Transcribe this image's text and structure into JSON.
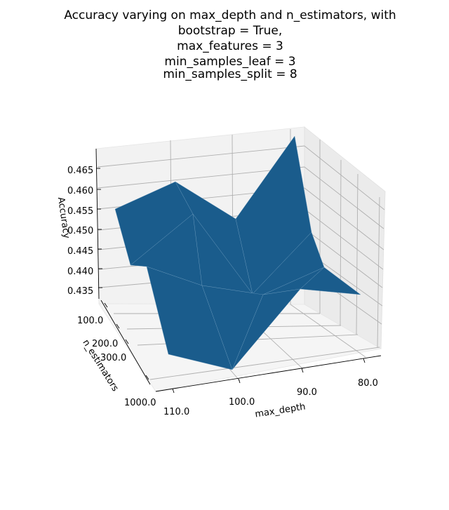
{
  "chart_data": {
    "type": "surface3d",
    "title_lines": [
      "Accuracy varying on max_depth and n_estimators, with",
      "bootstrap = True,",
      "max_features = 3",
      "min_samples_leaf = 3",
      "min_samples_split = 8"
    ],
    "xlabel": "max_depth",
    "ylabel": "n_estimators",
    "zlabel": "Accuracy",
    "x_ticks": [
      "110.0",
      "100.0",
      "90.0",
      "80.0"
    ],
    "y_ticks": [
      "100.0",
      "200.0",
      "300.0",
      "1000.0"
    ],
    "z_ticks": [
      "0.435",
      "0.440",
      "0.445",
      "0.450",
      "0.455",
      "0.460",
      "0.465"
    ],
    "surface_color": "#1a5c8c",
    "pane_color": "#f2f2f2",
    "grid": true
  }
}
